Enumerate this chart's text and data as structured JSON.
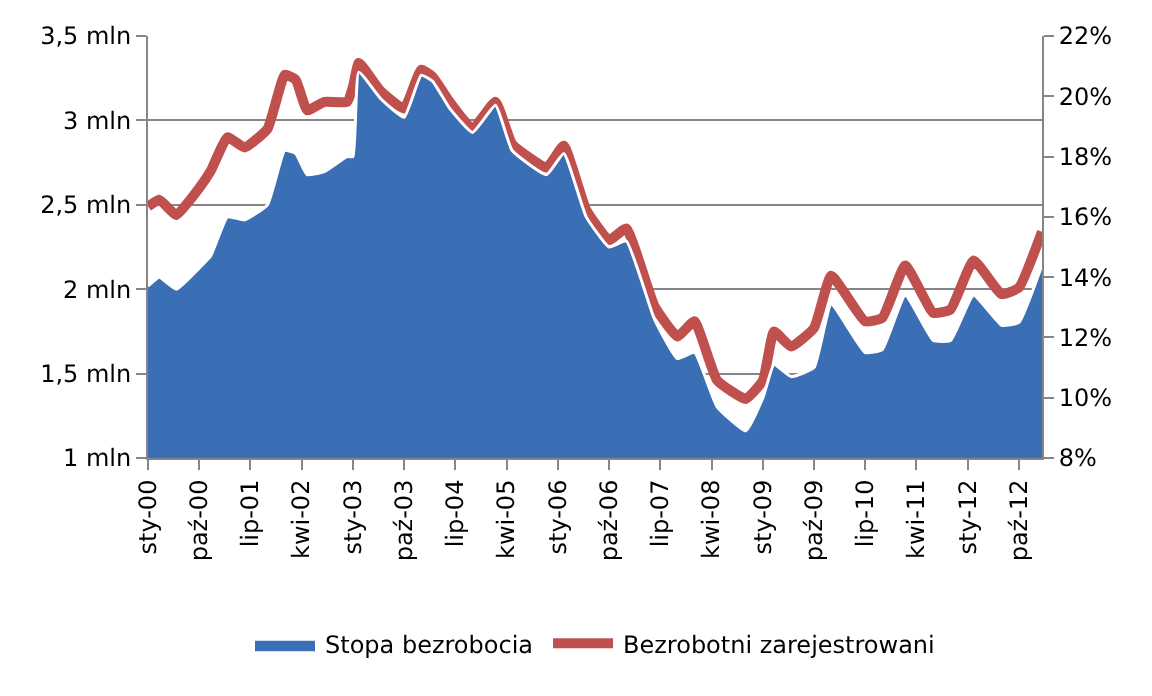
{
  "chart_data": {
    "type": "line",
    "x": [
      "2000-01",
      "2000-03",
      "2000-06",
      "2000-10",
      "2000-12",
      "2001-03",
      "2001-06",
      "2001-10",
      "2002-01",
      "2002-03",
      "2002-05",
      "2002-08",
      "2002-12",
      "2003-01",
      "2003-02",
      "2003-06",
      "2003-10",
      "2004-01",
      "2004-03",
      "2004-06",
      "2004-10",
      "2005-02",
      "2005-05",
      "2005-11",
      "2006-02",
      "2006-06",
      "2006-10",
      "2007-01",
      "2007-06",
      "2007-10",
      "2008-01",
      "2008-05",
      "2008-10",
      "2009-01",
      "2009-03",
      "2009-06",
      "2009-10",
      "2010-01",
      "2010-07",
      "2010-10",
      "2011-02",
      "2011-07",
      "2011-10",
      "2012-02",
      "2012-07",
      "2012-10",
      "2013-02"
    ],
    "series": [
      {
        "name": "Stopa bezrobocia",
        "type": "area",
        "axis": "y2",
        "color": "#3a6fb5",
        "values": [
          13.7,
          14.0,
          13.6,
          14.3,
          14.7,
          16.0,
          15.9,
          16.4,
          18.2,
          18.1,
          17.4,
          17.5,
          18.0,
          18.0,
          20.8,
          19.9,
          19.3,
          20.7,
          20.5,
          19.6,
          18.8,
          19.7,
          18.2,
          17.4,
          18.1,
          16.0,
          15.0,
          15.2,
          12.6,
          11.3,
          11.5,
          9.7,
          8.9,
          10.0,
          11.1,
          10.7,
          11.0,
          13.1,
          11.5,
          11.6,
          13.4,
          11.9,
          11.9,
          13.4,
          12.4,
          12.5,
          14.4
        ]
      },
      {
        "name": "Bezrobotni zarejestrowani",
        "color": "#c0504d",
        "values": [
          2.49,
          2.53,
          2.44,
          2.6,
          2.7,
          2.9,
          2.84,
          2.95,
          3.27,
          3.24,
          3.06,
          3.11,
          3.11,
          3.2,
          3.34,
          3.17,
          3.07,
          3.3,
          3.26,
          3.11,
          2.95,
          3.11,
          2.86,
          2.72,
          2.85,
          2.47,
          2.29,
          2.36,
          1.9,
          1.72,
          1.81,
          1.46,
          1.35,
          1.46,
          1.75,
          1.66,
          1.77,
          2.08,
          1.81,
          1.83,
          2.14,
          1.86,
          1.88,
          2.17,
          1.97,
          2.01,
          2.34
        ]
      }
    ],
    "xlim": [
      "2000-01",
      "2013-02"
    ],
    "xticks": [
      {
        "value": "2000-01",
        "label": "sty-00"
      },
      {
        "value": "2000-10",
        "label": "paź-00"
      },
      {
        "value": "2001-07",
        "label": "lip-01"
      },
      {
        "value": "2002-04",
        "label": "kwi-02"
      },
      {
        "value": "2003-01",
        "label": "sty-03"
      },
      {
        "value": "2003-10",
        "label": "paź-03"
      },
      {
        "value": "2004-07",
        "label": "lip-04"
      },
      {
        "value": "2005-04",
        "label": "kwi-05"
      },
      {
        "value": "2006-01",
        "label": "sty-06"
      },
      {
        "value": "2006-10",
        "label": "paź-06"
      },
      {
        "value": "2007-07",
        "label": "lip-07"
      },
      {
        "value": "2008-04",
        "label": "kwi-08"
      },
      {
        "value": "2009-01",
        "label": "sty-09"
      },
      {
        "value": "2009-10",
        "label": "paź-09"
      },
      {
        "value": "2010-07",
        "label": "lip-10"
      },
      {
        "value": "2011-04",
        "label": "kwi-11"
      },
      {
        "value": "2012-01",
        "label": "sty-12"
      },
      {
        "value": "2012-10",
        "label": "paź-12"
      }
    ],
    "ylim": [
      1,
      3.5
    ],
    "yticks": [
      {
        "value": 1,
        "label": "1 mln"
      },
      {
        "value": 1.5,
        "label": "1,5 mln"
      },
      {
        "value": 2,
        "label": "2 mln"
      },
      {
        "value": 2.5,
        "label": "2,5 mln"
      },
      {
        "value": 3,
        "label": "3 mln"
      },
      {
        "value": 3.5,
        "label": "3,5 mln"
      }
    ],
    "y2lim": [
      8,
      22
    ],
    "y2ticks": [
      {
        "value": 8,
        "label": "8%"
      },
      {
        "value": 10,
        "label": "10%"
      },
      {
        "value": 12,
        "label": "12%"
      },
      {
        "value": 14,
        "label": "14%"
      },
      {
        "value": 16,
        "label": "16%"
      },
      {
        "value": 18,
        "label": "18%"
      },
      {
        "value": 20,
        "label": "20%"
      },
      {
        "value": 22,
        "label": "22%"
      }
    ],
    "grid": "y",
    "legend": "bottom",
    "marker": "none"
  }
}
